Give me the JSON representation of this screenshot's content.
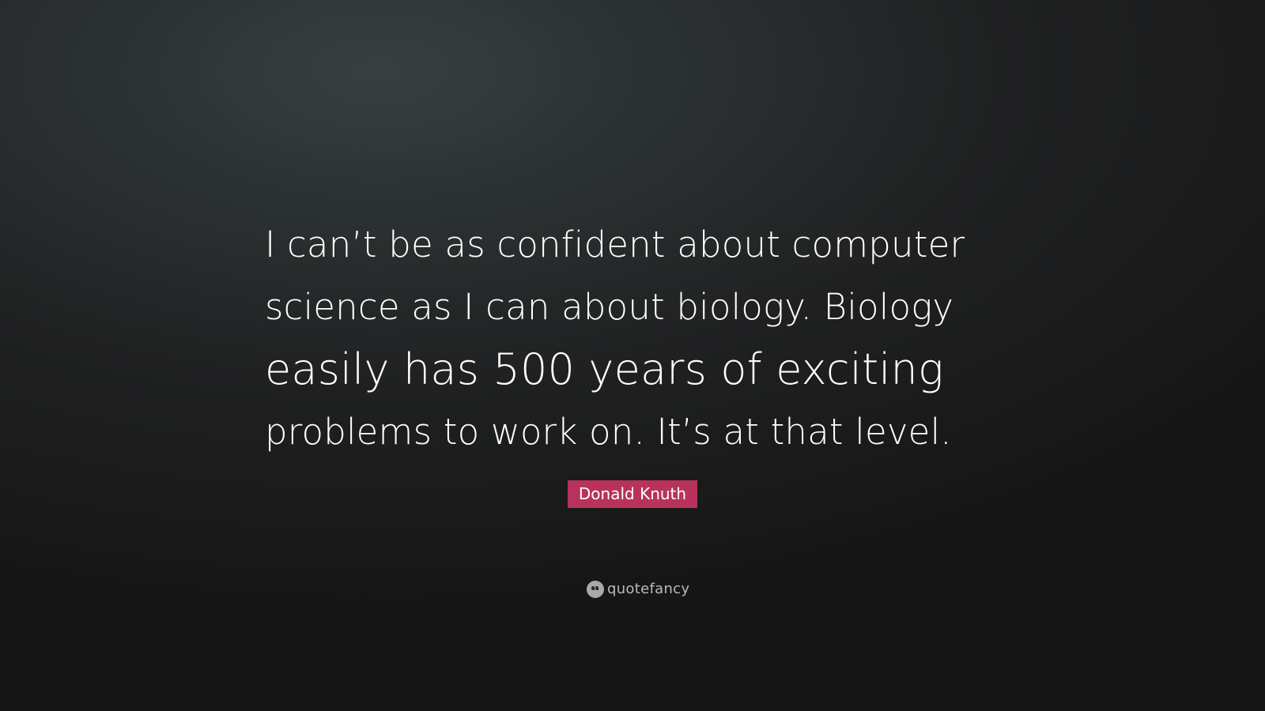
{
  "quote": {
    "lines": [
      "I can’t be as confident about computer",
      "science as I can about biology. Biology",
      "easily has 500 years of exciting",
      "problems to work on. It’s at that level."
    ]
  },
  "author": "Donald Knuth",
  "brand": {
    "name": "quotefancy",
    "icon": "quote-mark-icon"
  },
  "colors": {
    "author_badge": "#b8325c",
    "text": "#ffffff",
    "brand_text": "#b9b9b9"
  }
}
